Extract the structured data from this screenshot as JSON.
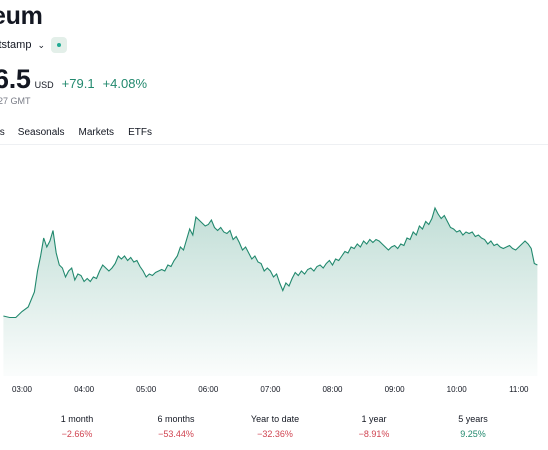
{
  "header": {
    "title": "eum",
    "exchange": "itstamp",
    "price": "6.5",
    "currency": "USD",
    "change_abs": "+79.1",
    "change_pct": "+4.08%",
    "timestamp": "27 GMT"
  },
  "tabs": [
    "als",
    "Seasonals",
    "Markets",
    "ETFs"
  ],
  "colors": {
    "line": "#22896e",
    "positive": "#22896e",
    "negative": "#d04451"
  },
  "chart_data": {
    "type": "area",
    "x_ticks": [
      "03:00",
      "04:00",
      "05:00",
      "06:00",
      "07:00",
      "08:00",
      "09:00",
      "10:00",
      "11:00"
    ],
    "series": [
      {
        "values": [
          [
            2.7,
            40
          ],
          [
            2.8,
            39
          ],
          [
            2.9,
            39
          ],
          [
            3.0,
            43
          ],
          [
            3.1,
            46
          ],
          [
            3.2,
            56
          ],
          [
            3.25,
            70
          ],
          [
            3.3,
            80
          ],
          [
            3.35,
            92
          ],
          [
            3.4,
            86
          ],
          [
            3.45,
            90
          ],
          [
            3.5,
            97
          ],
          [
            3.55,
            82
          ],
          [
            3.6,
            74
          ],
          [
            3.65,
            72
          ],
          [
            3.7,
            66
          ],
          [
            3.75,
            70
          ],
          [
            3.8,
            72
          ],
          [
            3.85,
            64
          ],
          [
            3.9,
            68
          ],
          [
            3.95,
            67
          ],
          [
            4.0,
            63
          ],
          [
            4.05,
            65
          ],
          [
            4.1,
            63
          ],
          [
            4.15,
            66
          ],
          [
            4.2,
            65
          ],
          [
            4.25,
            70
          ],
          [
            4.3,
            74
          ],
          [
            4.35,
            72
          ],
          [
            4.4,
            70
          ],
          [
            4.45,
            72
          ],
          [
            4.5,
            75
          ],
          [
            4.55,
            80
          ],
          [
            4.6,
            78
          ],
          [
            4.65,
            80
          ],
          [
            4.7,
            77
          ],
          [
            4.75,
            79
          ],
          [
            4.8,
            76
          ],
          [
            4.85,
            77
          ],
          [
            4.9,
            73
          ],
          [
            4.95,
            70
          ],
          [
            5.0,
            66
          ],
          [
            5.05,
            68
          ],
          [
            5.1,
            67
          ],
          [
            5.15,
            69
          ],
          [
            5.2,
            70
          ],
          [
            5.25,
            71
          ],
          [
            5.3,
            70
          ],
          [
            5.35,
            74
          ],
          [
            5.4,
            73
          ],
          [
            5.45,
            77
          ],
          [
            5.5,
            80
          ],
          [
            5.55,
            86
          ],
          [
            5.6,
            84
          ],
          [
            5.65,
            91
          ],
          [
            5.7,
            98
          ],
          [
            5.75,
            94
          ],
          [
            5.8,
            106
          ],
          [
            5.85,
            104
          ],
          [
            5.9,
            102
          ],
          [
            5.95,
            100
          ],
          [
            6.0,
            101
          ],
          [
            6.05,
            104
          ],
          [
            6.1,
            99
          ],
          [
            6.15,
            97
          ],
          [
            6.2,
            99
          ],
          [
            6.25,
            96
          ],
          [
            6.3,
            95
          ],
          [
            6.35,
            97
          ],
          [
            6.4,
            91
          ],
          [
            6.45,
            93
          ],
          [
            6.5,
            89
          ],
          [
            6.55,
            84
          ],
          [
            6.6,
            86
          ],
          [
            6.65,
            82
          ],
          [
            6.7,
            78
          ],
          [
            6.75,
            80
          ],
          [
            6.8,
            76
          ],
          [
            6.85,
            75
          ],
          [
            6.9,
            70
          ],
          [
            6.95,
            72
          ],
          [
            7.0,
            70
          ],
          [
            7.05,
            66
          ],
          [
            7.1,
            68
          ],
          [
            7.15,
            62
          ],
          [
            7.2,
            57
          ],
          [
            7.25,
            62
          ],
          [
            7.3,
            60
          ],
          [
            7.35,
            65
          ],
          [
            7.4,
            69
          ],
          [
            7.45,
            67
          ],
          [
            7.5,
            70
          ],
          [
            7.55,
            68
          ],
          [
            7.6,
            71
          ],
          [
            7.65,
            72
          ],
          [
            7.7,
            70
          ],
          [
            7.75,
            73
          ],
          [
            7.8,
            74
          ],
          [
            7.85,
            72
          ],
          [
            7.9,
            75
          ],
          [
            7.95,
            77
          ],
          [
            8.0,
            74
          ],
          [
            8.05,
            78
          ],
          [
            8.1,
            77
          ],
          [
            8.15,
            80
          ],
          [
            8.2,
            83
          ],
          [
            8.25,
            82
          ],
          [
            8.3,
            86
          ],
          [
            8.35,
            85
          ],
          [
            8.4,
            88
          ],
          [
            8.45,
            86
          ],
          [
            8.5,
            90
          ],
          [
            8.55,
            88
          ],
          [
            8.6,
            91
          ],
          [
            8.65,
            89
          ],
          [
            8.7,
            91
          ],
          [
            8.75,
            90
          ],
          [
            8.8,
            88
          ],
          [
            8.85,
            86
          ],
          [
            8.9,
            84
          ],
          [
            8.95,
            86
          ],
          [
            9.0,
            87
          ],
          [
            9.05,
            85
          ],
          [
            9.1,
            88
          ],
          [
            9.15,
            87
          ],
          [
            9.2,
            92
          ],
          [
            9.25,
            91
          ],
          [
            9.3,
            96
          ],
          [
            9.35,
            94
          ],
          [
            9.4,
            100
          ],
          [
            9.45,
            98
          ],
          [
            9.5,
            103
          ],
          [
            9.55,
            101
          ],
          [
            9.6,
            105
          ],
          [
            9.65,
            112
          ],
          [
            9.7,
            108
          ],
          [
            9.75,
            105
          ],
          [
            9.8,
            107
          ],
          [
            9.85,
            103
          ],
          [
            9.9,
            99
          ],
          [
            9.95,
            98
          ],
          [
            10.0,
            96
          ],
          [
            10.05,
            97
          ],
          [
            10.1,
            94
          ],
          [
            10.15,
            96
          ],
          [
            10.2,
            95
          ],
          [
            10.25,
            96
          ],
          [
            10.3,
            93
          ],
          [
            10.35,
            94
          ],
          [
            10.4,
            92
          ],
          [
            10.45,
            91
          ],
          [
            10.5,
            88
          ],
          [
            10.55,
            90
          ],
          [
            10.6,
            87
          ],
          [
            10.65,
            88
          ],
          [
            10.7,
            86
          ],
          [
            10.75,
            85
          ],
          [
            10.8,
            86
          ],
          [
            10.85,
            87
          ],
          [
            10.9,
            85
          ],
          [
            10.95,
            84
          ],
          [
            11.0,
            86
          ],
          [
            11.05,
            88
          ],
          [
            11.1,
            90
          ],
          [
            11.15,
            88
          ],
          [
            11.2,
            85
          ],
          [
            11.25,
            75
          ],
          [
            11.3,
            74
          ]
        ]
      }
    ],
    "grid": false
  },
  "performance": [
    {
      "label": "1 month",
      "value": "−2.66%",
      "sign": "neg"
    },
    {
      "label": "6 months",
      "value": "−53.44%",
      "sign": "neg"
    },
    {
      "label": "Year to date",
      "value": "−32.36%",
      "sign": "neg"
    },
    {
      "label": "1 year",
      "value": "−8.91%",
      "sign": "neg"
    },
    {
      "label": "5 years",
      "value": "9.25%",
      "sign": "pos"
    }
  ]
}
